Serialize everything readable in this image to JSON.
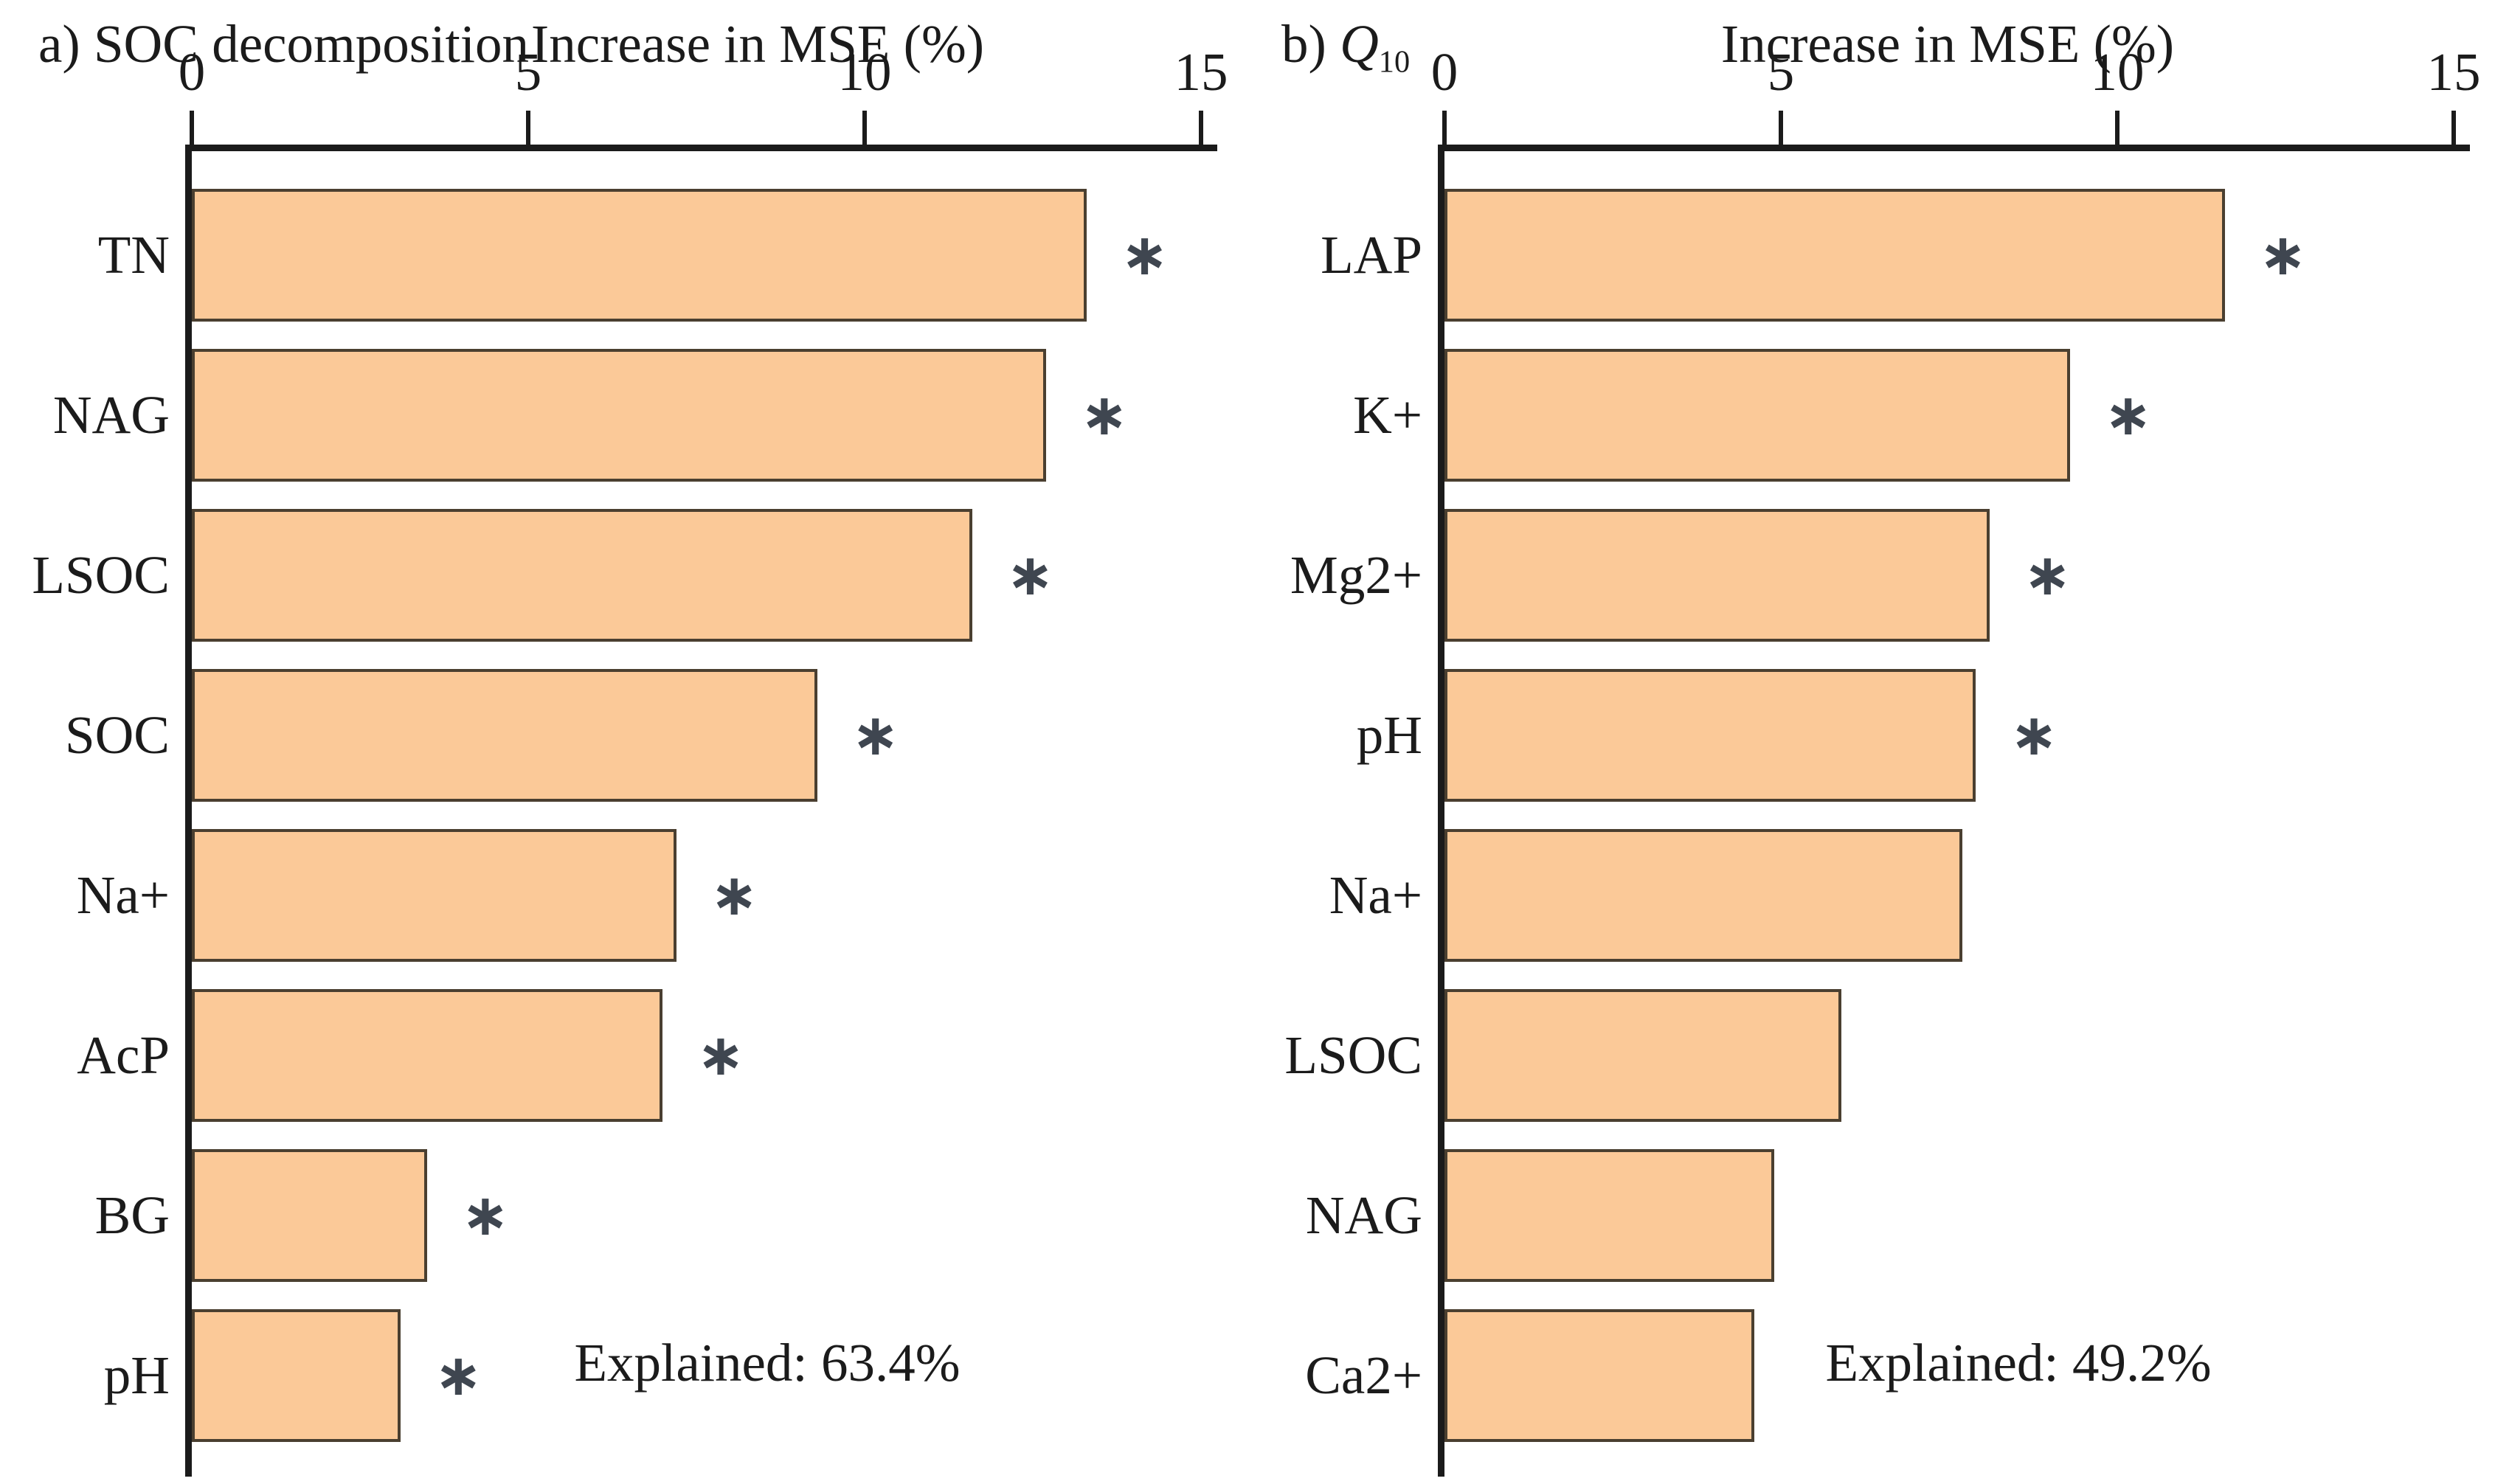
{
  "figure": {
    "description": "Random forest variable importance, two horizontal bar chart panels",
    "background": "#ffffff"
  },
  "chart_data": [
    {
      "type": "bar",
      "orientation": "horizontal",
      "panel_title": "a) SOC decomposition",
      "panel_title_parts": [
        {
          "text": "a) SOC decomposition",
          "style": "plain"
        }
      ],
      "xlabel": "Increase in MSE (%)",
      "categories": [
        "TN",
        "NAG",
        "LSOC",
        "SOC",
        "Na+",
        "AcP",
        "BG",
        "pH"
      ],
      "values": [
        13.3,
        12.7,
        11.6,
        9.3,
        7.2,
        7.0,
        3.5,
        3.1
      ],
      "significant": [
        true,
        true,
        true,
        true,
        true,
        true,
        true,
        true
      ],
      "sig_marker": "∗",
      "xticks": [
        "0",
        "5",
        "10",
        "15"
      ],
      "xtick_values": [
        0,
        5,
        10,
        15
      ],
      "xlim": [
        0,
        15.2
      ],
      "grid": false,
      "legend": "none",
      "annotation": "Explained: 63.4%"
    },
    {
      "type": "bar",
      "orientation": "horizontal",
      "panel_title": "b) Q10",
      "panel_title_parts": [
        {
          "text": "b) ",
          "style": "plain"
        },
        {
          "text": "Q",
          "style": "italic"
        },
        {
          "text": "10",
          "style": "sub"
        }
      ],
      "xlabel": "Increase in MSE (%)",
      "categories": [
        "LAP",
        "K+",
        "Mg2+",
        "pH",
        "Na+",
        "LSOC",
        "NAG",
        "Ca2+"
      ],
      "values": [
        11.6,
        9.3,
        8.1,
        7.9,
        7.7,
        5.9,
        4.9,
        4.6
      ],
      "significant": [
        true,
        true,
        true,
        true,
        false,
        false,
        false,
        false
      ],
      "sig_marker": "∗",
      "xticks": [
        "0",
        "5",
        "10",
        "15"
      ],
      "xtick_values": [
        0,
        5,
        10,
        15
      ],
      "xlim": [
        0,
        15.2
      ],
      "grid": false,
      "legend": "none",
      "annotation": "Explained: 49.2%"
    }
  ],
  "style": {
    "bar_fill": "#fbc998",
    "bar_border": "#4a3f30",
    "axis_color": "#1b1b1b",
    "text_color": "#1b1b1b",
    "asterisk_color": "#3f4650"
  }
}
